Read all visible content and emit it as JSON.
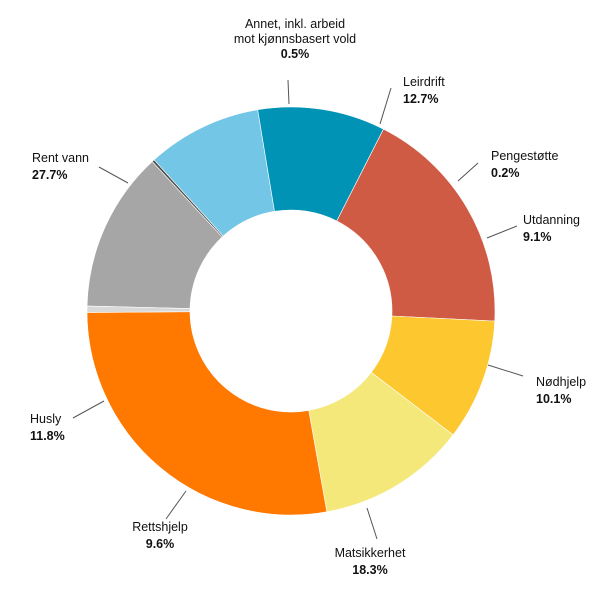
{
  "chart_data": {
    "type": "pie",
    "donut": true,
    "legend": "none",
    "slices": [
      {
        "label": "Leirdrift",
        "value": 12.7,
        "value_label": "12.7%",
        "color": "#a6a6a6"
      },
      {
        "label": "Pengestøtte",
        "value": 0.2,
        "value_label": "0.2%",
        "color": "#4a4a4a"
      },
      {
        "label": "Utdanning",
        "value": 9.1,
        "value_label": "9.1%",
        "color": "#74c6e6"
      },
      {
        "label": "Nødhjelp",
        "value": 10.1,
        "value_label": "10.1%",
        "color": "#0093b5"
      },
      {
        "label": "Matsikkerhet",
        "value": 18.3,
        "value_label": "18.3%",
        "color": "#d05b45"
      },
      {
        "label": "Rettshjelp",
        "value": 9.6,
        "value_label": "9.6%",
        "color": "#fcc72f"
      },
      {
        "label": "Husly",
        "value": 11.8,
        "value_label": "11.8%",
        "color": "#f4e87a"
      },
      {
        "label": "Rent vann",
        "value": 27.7,
        "value_label": "27.7%",
        "color": "#ff7800"
      },
      {
        "label": [
          "Annet, inkl. arbeid",
          "mot kjønnsbasert vold"
        ],
        "value": 0.5,
        "value_label": "0.5%",
        "color": "#d9d9d9"
      }
    ]
  }
}
